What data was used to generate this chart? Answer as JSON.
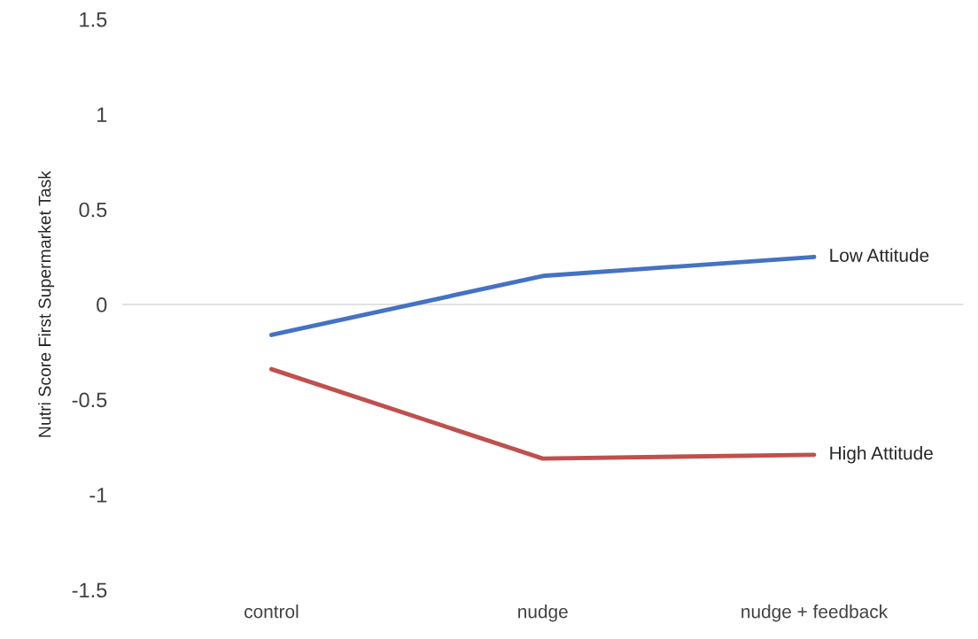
{
  "chart_data": {
    "type": "line",
    "ylabel": "Nutri Score First Supermarket Task",
    "categories": [
      "control",
      "nudge",
      "nudge + feedback"
    ],
    "series": [
      {
        "name": "Low Attitude",
        "color": "#4472c4",
        "values": [
          -0.16,
          0.15,
          0.25
        ]
      },
      {
        "name": "High Attitude",
        "color": "#c0504d",
        "values": [
          -0.34,
          -0.81,
          -0.79
        ]
      }
    ],
    "ylim": [
      -1.5,
      1.5
    ],
    "yticks": [
      -1.5,
      -1,
      -0.5,
      0,
      0.5,
      1,
      1.5
    ],
    "ref_lines": [
      {
        "axis": "y",
        "value": 0,
        "label": null,
        "color": "#d9d9d9"
      }
    ],
    "grid": false,
    "legend": false,
    "marker": "none",
    "line_style": "solid"
  }
}
